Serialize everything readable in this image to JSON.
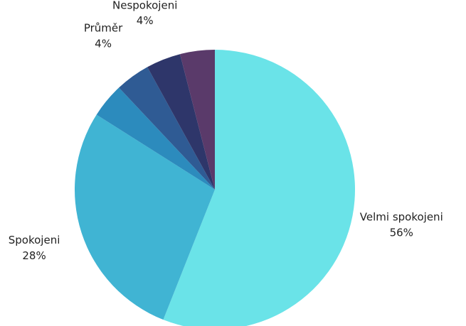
{
  "chart_data": {
    "type": "pie",
    "categories": [
      "Velmi spokojeni",
      "Spokojeni",
      null,
      "Průměr",
      "Nespokojeni",
      null
    ],
    "values": [
      56,
      28,
      4,
      4,
      4,
      4
    ],
    "value_labels": [
      "56%",
      "28%",
      null,
      "4%",
      "4%",
      null
    ],
    "colors": [
      "#6ae3e8",
      "#40b4d3",
      "#2c8bbd",
      "#2f5b94",
      "#2e366a",
      "#5a3a6a"
    ]
  }
}
